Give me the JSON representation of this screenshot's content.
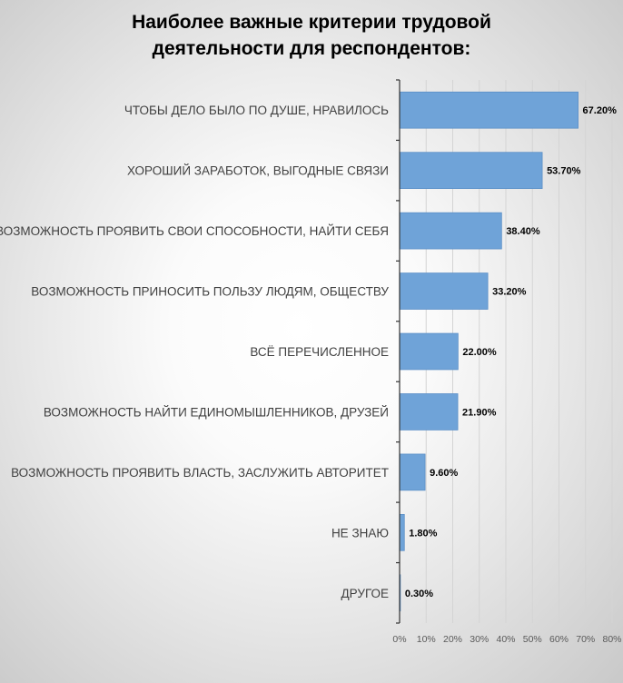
{
  "chart_data": {
    "type": "bar",
    "orientation": "horizontal",
    "title": [
      "Наиболее важные критерии трудовой",
      "деятельности для респондентов:"
    ],
    "categories": [
      "ЧТОБЫ ДЕЛО БЫЛО ПО ДУШЕ, НРАВИЛОСЬ",
      "ХОРОШИЙ ЗАРАБОТОК, ВЫГОДНЫЕ СВЯЗИ",
      "ВОЗМОЖНОСТЬ ПРОЯВИТЬ СВОИ СПОСОБНОСТИ, НАЙТИ СЕБЯ",
      "ВОЗМОЖНОСТЬ ПРИНОСИТЬ ПОЛЬЗУ ЛЮДЯМ, ОБЩЕСТВУ",
      "ВСЁ ПЕРЕЧИСЛЕННОЕ",
      "ВОЗМОЖНОСТЬ НАЙТИ ЕДИНОМЫШЛЕННИКОВ, ДРУЗЕЙ",
      "ВОЗМОЖНОСТЬ ПРОЯВИТЬ ВЛАСТЬ, ЗАСЛУЖИТЬ  АВТОРИТЕТ",
      "НЕ ЗНАЮ",
      "ДРУГОЕ"
    ],
    "values": [
      67.2,
      53.7,
      38.4,
      33.2,
      22.0,
      21.9,
      9.6,
      1.8,
      0.3
    ],
    "data_labels": [
      "67.20%",
      "53.70%",
      "38.40%",
      "33.20%",
      "22.00%",
      "21.90%",
      "9.60%",
      "1.80%",
      "0.30%"
    ],
    "xlim": [
      0,
      80
    ],
    "x_ticks": [
      0,
      10,
      20,
      30,
      40,
      50,
      60,
      70,
      80
    ],
    "x_tick_labels": [
      "0%",
      "10%",
      "20%",
      "30%",
      "40%",
      "50%",
      "60%",
      "70%",
      "80%"
    ],
    "grid": true,
    "legend": "none",
    "bar_color": "#6fa3d8",
    "bar_border_color": "#5b8fc7"
  }
}
